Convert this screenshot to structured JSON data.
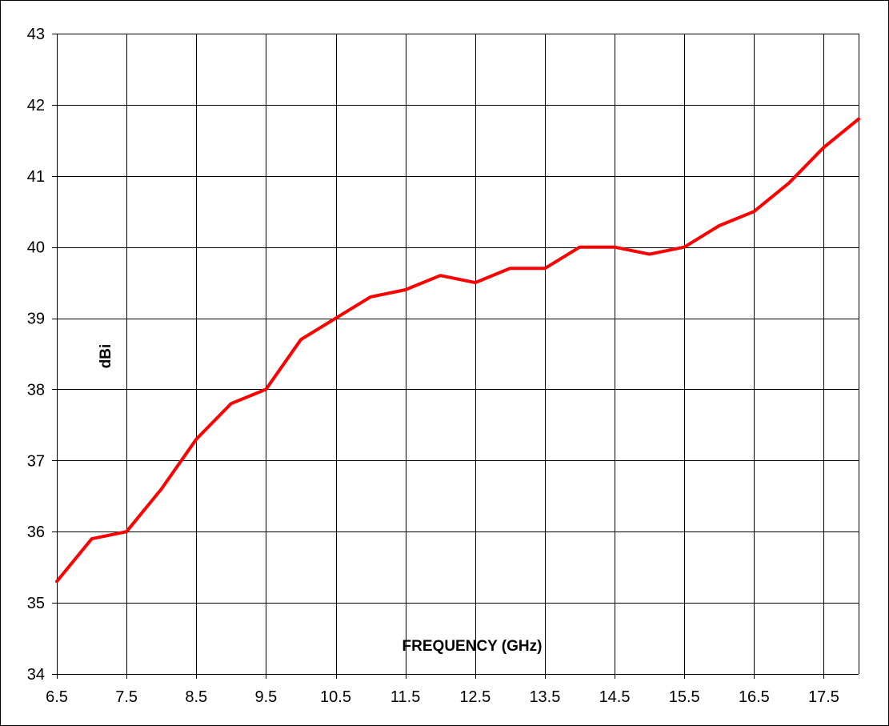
{
  "chart_data": {
    "type": "line",
    "title": "",
    "xlabel": "FREQUENCY (GHz)",
    "ylabel": "dBi",
    "xlim": [
      6.5,
      18
    ],
    "ylim": [
      34,
      43
    ],
    "x_ticks": [
      "6.5",
      "7.5",
      "8.5",
      "9.5",
      "10.5",
      "11.5",
      "12.5",
      "13.5",
      "14.5",
      "15.5",
      "16.5",
      "17.5"
    ],
    "y_ticks": [
      "34",
      "35",
      "36",
      "37",
      "38",
      "39",
      "40",
      "41",
      "42",
      "43"
    ],
    "grid": true,
    "series": [
      {
        "color": "#ff0000",
        "x": [
          6.5,
          7.0,
          7.5,
          8.0,
          8.5,
          9.0,
          9.5,
          10.0,
          10.5,
          11.0,
          11.5,
          12.0,
          12.5,
          13.0,
          13.5,
          14.0,
          14.5,
          15.0,
          15.5,
          16.0,
          16.5,
          17.0,
          17.5,
          18.0
        ],
        "y": [
          35.3,
          35.9,
          36.0,
          36.6,
          37.3,
          37.8,
          38.0,
          38.7,
          39.0,
          39.3,
          39.4,
          39.6,
          39.5,
          39.7,
          39.7,
          40.0,
          40.0,
          39.9,
          40.0,
          40.3,
          40.5,
          40.9,
          41.4,
          41.8
        ]
      }
    ]
  }
}
